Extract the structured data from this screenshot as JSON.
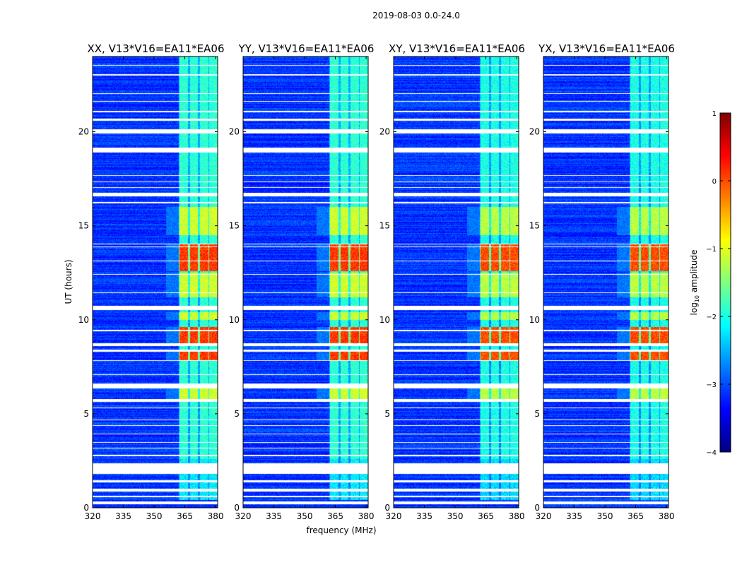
{
  "chart_data": {
    "type": "heatmap",
    "suptitle": "2019-08-03 0.0-24.0",
    "xlabel": "frequency (MHz)",
    "ylabel": "UT (hours)",
    "xlim": [
      320,
      381
    ],
    "ylim": [
      0,
      24
    ],
    "xticks": [
      320,
      335,
      350,
      365,
      380
    ],
    "yticks": [
      0,
      5,
      10,
      15,
      20
    ],
    "colorbar": {
      "label_prefix": "log",
      "label_sub": "10",
      "label_suffix": " amplitude",
      "range": [
        -4,
        1
      ],
      "ticks": [
        "1",
        "0",
        "−1",
        "−2",
        "−3",
        "−4"
      ],
      "colormap": [
        "#00007f",
        "#0000ff",
        "#007fff",
        "#00ffff",
        "#7fff7f",
        "#ffff00",
        "#ff7f00",
        "#ff0000",
        "#7f0000"
      ]
    },
    "panels": [
      {
        "title": "XX, V13*V16=EA11*EA06"
      },
      {
        "title": "YY, V13*V16=EA11*EA06"
      },
      {
        "title": "XY, V13*V16=EA11*EA06"
      },
      {
        "title": "YX, V13*V16=EA11*EA06"
      }
    ],
    "rfi_channel_centers_mhz": [
      364.5,
      369.5,
      374.5,
      379
    ],
    "rfi_band_mhz": [
      362,
      381
    ],
    "flagged_time_ranges_h": [
      [
        0.2,
        0.35
      ],
      [
        0.55,
        0.65
      ],
      [
        0.85,
        1.0
      ],
      [
        1.35,
        1.45
      ],
      [
        1.8,
        2.35
      ],
      [
        2.75,
        2.82
      ],
      [
        3.15,
        3.2
      ],
      [
        3.45,
        3.5
      ],
      [
        3.9,
        3.95
      ],
      [
        4.35,
        4.4
      ],
      [
        4.65,
        4.7
      ],
      [
        5.3,
        5.35
      ],
      [
        5.65,
        5.8
      ],
      [
        6.35,
        6.6
      ],
      [
        7.05,
        7.1
      ],
      [
        7.8,
        7.85
      ],
      [
        8.3,
        8.4
      ],
      [
        8.6,
        8.75
      ],
      [
        9.4,
        9.45
      ],
      [
        10.5,
        10.75
      ],
      [
        11.4,
        11.45
      ],
      [
        12.4,
        12.45
      ],
      [
        13.1,
        13.15
      ],
      [
        13.85,
        13.9
      ],
      [
        14.0,
        14.05
      ],
      [
        16.2,
        16.25
      ],
      [
        16.55,
        16.75
      ],
      [
        17.0,
        17.05
      ],
      [
        17.3,
        17.35
      ],
      [
        17.65,
        17.7
      ],
      [
        18.9,
        19.15
      ],
      [
        19.9,
        20.15
      ],
      [
        20.6,
        20.7
      ],
      [
        21.05,
        21.1
      ],
      [
        21.6,
        21.65
      ],
      [
        22.0,
        22.05
      ],
      [
        23.0,
        23.05
      ],
      [
        23.5,
        23.55
      ]
    ],
    "strong_rfi_hours": [
      [
        8.7,
        9.6
      ],
      [
        12.6,
        14.0
      ],
      [
        7.8,
        8.3
      ]
    ],
    "moderate_rfi_hours": [
      [
        5.8,
        6.4
      ],
      [
        14.5,
        16.0
      ],
      [
        10.0,
        10.4
      ],
      [
        11.2,
        12.5
      ]
    ]
  }
}
